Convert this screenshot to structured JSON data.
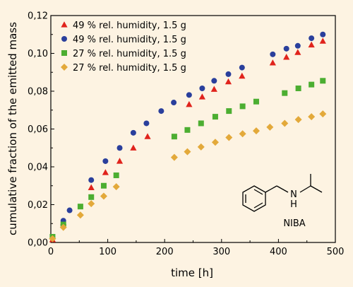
{
  "background": "#fdf3e2",
  "chart_data": {
    "type": "scatter",
    "xlabel": "time [h]",
    "ylabel": "cumulative fraction of the emitted mass",
    "xlim": [
      0,
      500
    ],
    "ylim": [
      0,
      0.12
    ],
    "x_ticks": [
      0,
      100,
      200,
      300,
      400,
      500
    ],
    "x_tick_labels": [
      "0",
      "100",
      "200",
      "300",
      "400",
      "500"
    ],
    "y_ticks": [
      0,
      0.02,
      0.04,
      0.06,
      0.08,
      0.1,
      0.12
    ],
    "y_tick_labels": [
      "0,00",
      "0,02",
      "0,04",
      "0,06",
      "0,08",
      "0,10",
      "0,12"
    ],
    "grid": false,
    "legend_position": "top-left",
    "series": [
      {
        "name": "49 % rel. humidity, 1.5 g",
        "marker": "triangle",
        "color": "#e0231c",
        "x": [
          3,
          22,
          71,
          96,
          121,
          145,
          170,
          243,
          266,
          287,
          312,
          336,
          390,
          414,
          434,
          458,
          478
        ],
        "y": [
          0.0015,
          0.0105,
          0.029,
          0.037,
          0.043,
          0.05,
          0.056,
          0.073,
          0.077,
          0.081,
          0.085,
          0.088,
          0.095,
          0.098,
          0.1005,
          0.1045,
          0.1065
        ]
      },
      {
        "name": "49 % rel. humidity, 1.5 g",
        "marker": "circle",
        "color": "#2a3f9c",
        "x": [
          3,
          22,
          33,
          71,
          96,
          121,
          145,
          168,
          194,
          216,
          243,
          266,
          287,
          312,
          336,
          390,
          414,
          434,
          458,
          478
        ],
        "y": [
          0.0025,
          0.0115,
          0.017,
          0.033,
          0.043,
          0.05,
          0.058,
          0.063,
          0.0695,
          0.074,
          0.078,
          0.0815,
          0.0855,
          0.089,
          0.0925,
          0.0995,
          0.1025,
          0.104,
          0.108,
          0.11
        ]
      },
      {
        "name": "27 % rel. humidity, 1.5 g",
        "marker": "square",
        "color": "#4cae31",
        "x": [
          3,
          22,
          52,
          71,
          93,
          115,
          217,
          240,
          264,
          289,
          313,
          337,
          361,
          411,
          435,
          458,
          478
        ],
        "y": [
          0.003,
          0.0095,
          0.019,
          0.024,
          0.03,
          0.0355,
          0.056,
          0.0595,
          0.063,
          0.0665,
          0.0695,
          0.072,
          0.0745,
          0.079,
          0.0815,
          0.0835,
          0.0855
        ]
      },
      {
        "name": "27 % rel. humidity, 1.5 g",
        "marker": "diamond",
        "color": "#e3a93a",
        "x": [
          3,
          22,
          52,
          71,
          93,
          115,
          217,
          240,
          264,
          289,
          313,
          337,
          361,
          385,
          411,
          435,
          458,
          478
        ],
        "y": [
          0.002,
          0.008,
          0.0145,
          0.0205,
          0.0245,
          0.0295,
          0.045,
          0.048,
          0.0505,
          0.053,
          0.0555,
          0.0575,
          0.059,
          0.061,
          0.063,
          0.065,
          0.0665,
          0.068
        ]
      }
    ],
    "annotations": {
      "molecule": "NIBA",
      "amine_label": "N",
      "amine_h": "H"
    }
  }
}
